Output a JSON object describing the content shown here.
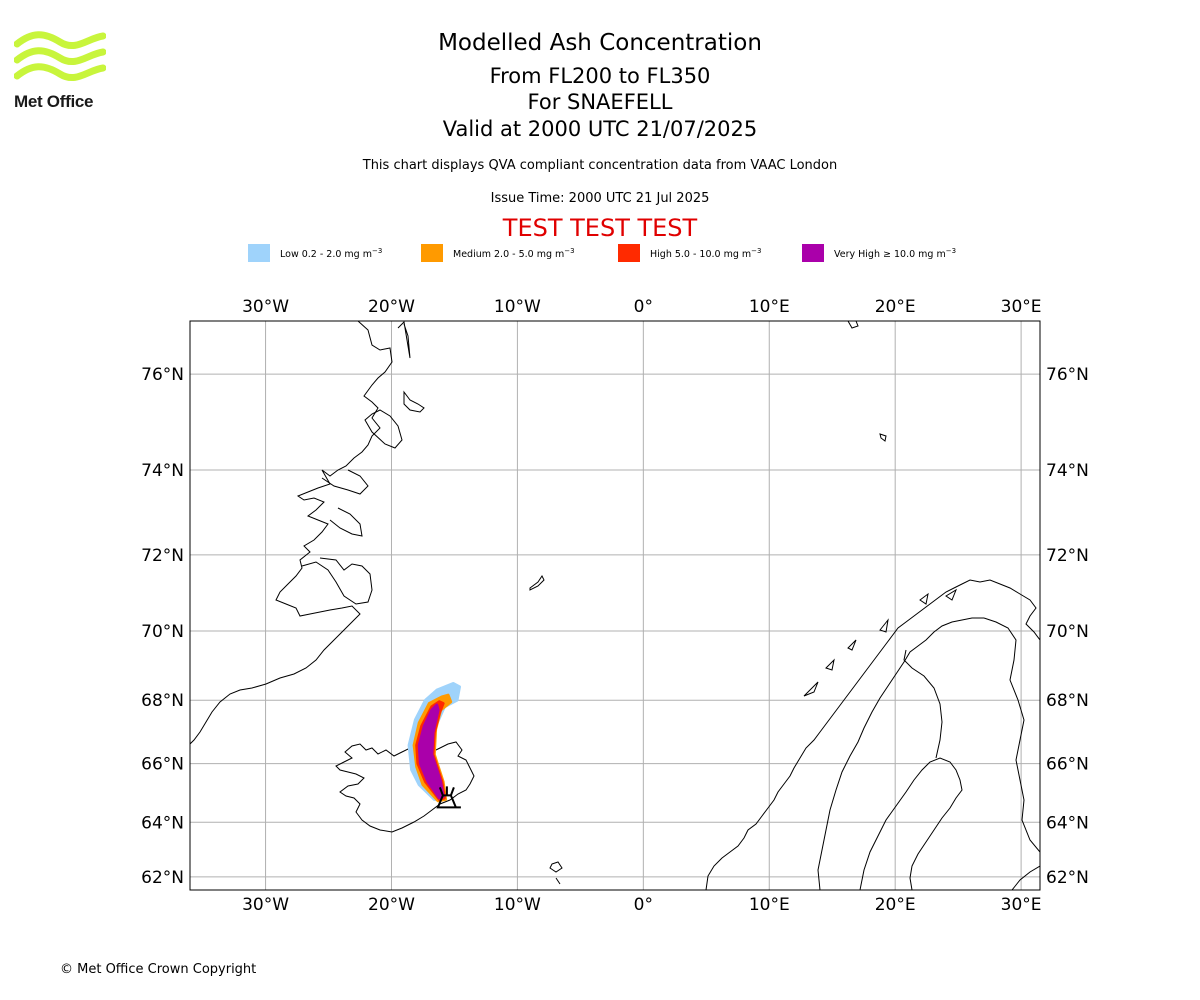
{
  "logo": {
    "text": "Met Office",
    "wave_color": "#c8f53c"
  },
  "title": {
    "main": "Modelled Ash Concentration",
    "levels": "From FL200 to FL350",
    "volcano": "For SNAEFELL",
    "valid": "Valid at 2000 UTC 21/07/2025"
  },
  "subtitle": "This chart displays QVA compliant concentration data from VAAC London",
  "issue_time": "Issue Time: 2000 UTC 21 Jul 2025",
  "test_banner": "TEST TEST TEST",
  "test_color": "#e00000",
  "legend": [
    {
      "label": "Low 0.2 - 2.0 mg m",
      "exp": "−3",
      "color": "#9fd3fb"
    },
    {
      "label": "Medium 2.0 - 5.0 mg m",
      "exp": "−3",
      "color": "#ff9a00"
    },
    {
      "label": "High 5.0 - 10.0 mg m",
      "exp": "−3",
      "color": "#ff2a00"
    },
    {
      "label": "Very High  ≥  10.0 mg m",
      "exp": "−3",
      "color": "#aa00aa"
    }
  ],
  "map": {
    "lon_range": [
      -36,
      31.5
    ],
    "lat_range": [
      61.5,
      77
    ],
    "lon_ticks": [
      {
        "value": -30,
        "label": "30°W"
      },
      {
        "value": -20,
        "label": "20°W"
      },
      {
        "value": -10,
        "label": "10°W"
      },
      {
        "value": 0,
        "label": "0°"
      },
      {
        "value": 10,
        "label": "10°E"
      },
      {
        "value": 20,
        "label": "20°E"
      },
      {
        "value": 30,
        "label": "30°E"
      }
    ],
    "lat_ticks": [
      {
        "value": 62,
        "label": "62°N"
      },
      {
        "value": 64,
        "label": "64°N"
      },
      {
        "value": 66,
        "label": "66°N"
      },
      {
        "value": 68,
        "label": "68°N"
      },
      {
        "value": 70,
        "label": "70°N"
      },
      {
        "value": 72,
        "label": "72°N"
      },
      {
        "value": 74,
        "label": "74°N"
      },
      {
        "value": 76,
        "label": "76°N"
      }
    ],
    "gridlines": true,
    "volcano": {
      "name": "SNAEFELL",
      "lon": -15.6,
      "lat": 64.8
    },
    "ash_plume": {
      "low": [
        [
          -18.4,
          65.8
        ],
        [
          -18.6,
          66.6
        ],
        [
          -18.1,
          67.4
        ],
        [
          -17.3,
          68.0
        ],
        [
          -16.4,
          68.3
        ],
        [
          -15.1,
          68.5
        ],
        [
          -14.6,
          68.4
        ],
        [
          -14.8,
          68.0
        ],
        [
          -15.8,
          67.8
        ],
        [
          -16.6,
          67.1
        ],
        [
          -16.8,
          66.3
        ],
        [
          -16.0,
          65.3
        ],
        [
          -15.8,
          64.8
        ],
        [
          -16.6,
          64.8
        ],
        [
          -17.8,
          65.3
        ]
      ],
      "medium": [
        [
          -18.0,
          65.9
        ],
        [
          -18.2,
          66.6
        ],
        [
          -17.8,
          67.3
        ],
        [
          -17.0,
          67.9
        ],
        [
          -16.0,
          68.1
        ],
        [
          -15.5,
          68.15
        ],
        [
          -15.3,
          67.95
        ],
        [
          -16.1,
          67.7
        ],
        [
          -16.5,
          67.1
        ],
        [
          -16.6,
          66.3
        ],
        [
          -15.9,
          65.4
        ],
        [
          -15.7,
          64.8
        ],
        [
          -16.3,
          64.75
        ],
        [
          -17.5,
          65.3
        ]
      ],
      "high": [
        [
          -17.9,
          66.0
        ],
        [
          -18.0,
          66.6
        ],
        [
          -17.6,
          67.2
        ],
        [
          -16.8,
          67.8
        ],
        [
          -16.2,
          67.95
        ],
        [
          -15.9,
          67.9
        ],
        [
          -16.2,
          67.6
        ],
        [
          -16.6,
          67.0
        ],
        [
          -16.7,
          66.3
        ],
        [
          -16.0,
          65.4
        ],
        [
          -15.8,
          64.85
        ],
        [
          -16.2,
          64.8
        ],
        [
          -17.3,
          65.4
        ]
      ],
      "very_high": [
        [
          -17.7,
          66.0
        ],
        [
          -17.8,
          66.6
        ],
        [
          -17.4,
          67.2
        ],
        [
          -16.8,
          67.7
        ],
        [
          -16.4,
          67.85
        ],
        [
          -16.3,
          67.7
        ],
        [
          -16.7,
          67.0
        ],
        [
          -16.8,
          66.3
        ],
        [
          -16.1,
          65.4
        ],
        [
          -15.9,
          64.9
        ],
        [
          -16.2,
          64.85
        ],
        [
          -17.1,
          65.4
        ]
      ]
    }
  },
  "copyright": "© Met Office Crown Copyright"
}
